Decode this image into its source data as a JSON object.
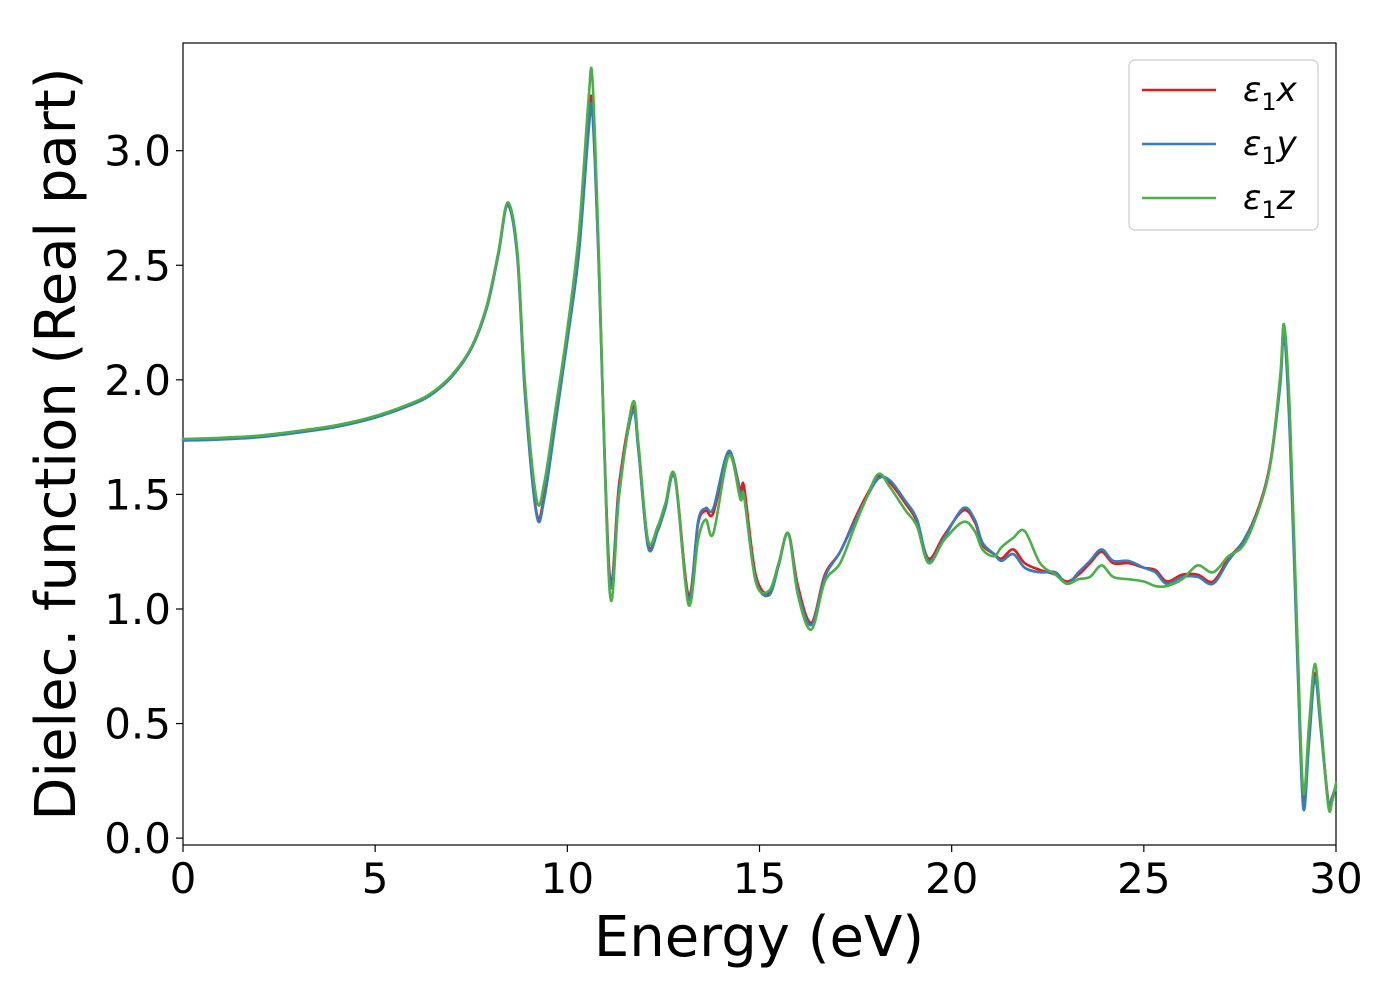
{
  "chart_data": {
    "type": "line",
    "xlabel": "Energy (eV)",
    "ylabel": "Dielec. function (Real part)",
    "xlim": [
      0,
      30
    ],
    "ylim": [
      -0.03,
      3.47
    ],
    "xticks": [
      0,
      5,
      10,
      15,
      20,
      25,
      30
    ],
    "xtick_labels": [
      "0",
      "5",
      "10",
      "15",
      "20",
      "25",
      "30"
    ],
    "yticks": [
      0.0,
      0.5,
      1.0,
      1.5,
      2.0,
      2.5,
      3.0
    ],
    "ytick_labels": [
      "0.0",
      "0.5",
      "1.0",
      "1.5",
      "2.0",
      "2.5",
      "3.0"
    ],
    "grid": false,
    "legend_position": "top-right",
    "series": [
      {
        "name": "ε₁x",
        "legend_main": "ε",
        "legend_sub": "1",
        "legend_axis": "x",
        "color": "#e41a1c",
        "x": [
          0,
          1,
          2,
          3,
          4,
          5,
          6,
          6.5,
          7,
          7.5,
          7.9,
          8.2,
          8.45,
          8.7,
          8.9,
          9.2,
          9.4,
          9.7,
          10.0,
          10.3,
          10.55,
          10.65,
          10.8,
          11.1,
          11.35,
          11.7,
          11.85,
          12.1,
          12.35,
          12.55,
          12.8,
          13.15,
          13.4,
          13.6,
          13.8,
          14.2,
          14.5,
          14.6,
          14.9,
          15.25,
          15.5,
          15.75,
          16.0,
          16.35,
          16.7,
          17.1,
          17.5,
          17.8,
          18.1,
          18.4,
          18.8,
          19.1,
          19.4,
          19.8,
          20.3,
          20.6,
          20.8,
          21.1,
          21.3,
          21.6,
          21.9,
          22.3,
          22.7,
          23.0,
          23.3,
          23.6,
          23.9,
          24.2,
          24.6,
          25.0,
          25.3,
          25.6,
          26.0,
          26.4,
          26.8,
          27.2,
          27.6,
          28.0,
          28.3,
          28.55,
          28.65,
          28.8,
          29.0,
          29.15,
          29.3,
          29.45,
          29.6,
          29.8,
          29.9,
          30.0
        ],
        "y": [
          1.74,
          1.745,
          1.755,
          1.775,
          1.8,
          1.84,
          1.9,
          1.945,
          2.02,
          2.14,
          2.32,
          2.55,
          2.77,
          2.55,
          1.95,
          1.42,
          1.5,
          1.85,
          2.2,
          2.6,
          3.12,
          3.2,
          2.6,
          1.15,
          1.55,
          1.88,
          1.7,
          1.28,
          1.35,
          1.45,
          1.58,
          1.06,
          1.37,
          1.43,
          1.42,
          1.68,
          1.52,
          1.53,
          1.15,
          1.07,
          1.2,
          1.33,
          1.1,
          0.94,
          1.15,
          1.25,
          1.4,
          1.5,
          1.58,
          1.55,
          1.46,
          1.38,
          1.22,
          1.32,
          1.43,
          1.38,
          1.28,
          1.24,
          1.22,
          1.26,
          1.2,
          1.17,
          1.15,
          1.12,
          1.15,
          1.2,
          1.25,
          1.2,
          1.2,
          1.18,
          1.17,
          1.12,
          1.15,
          1.15,
          1.12,
          1.22,
          1.3,
          1.45,
          1.65,
          2.0,
          2.22,
          1.8,
          0.8,
          0.15,
          0.45,
          0.72,
          0.5,
          0.16,
          0.18,
          0.23
        ]
      },
      {
        "name": "ε₁y",
        "legend_main": "ε",
        "legend_sub": "1",
        "legend_axis": "y",
        "color": "#377eb8",
        "x": [
          0,
          1,
          2,
          3,
          4,
          5,
          6,
          6.5,
          7,
          7.5,
          7.9,
          8.2,
          8.45,
          8.7,
          8.9,
          9.2,
          9.4,
          9.7,
          10.0,
          10.3,
          10.55,
          10.65,
          10.8,
          11.1,
          11.35,
          11.7,
          11.85,
          12.1,
          12.35,
          12.55,
          12.8,
          13.15,
          13.4,
          13.6,
          13.8,
          14.2,
          14.5,
          14.6,
          14.9,
          15.25,
          15.5,
          15.75,
          16.0,
          16.35,
          16.7,
          17.1,
          17.5,
          17.8,
          18.1,
          18.4,
          18.8,
          19.1,
          19.4,
          19.8,
          20.3,
          20.6,
          20.8,
          21.1,
          21.3,
          21.6,
          21.9,
          22.3,
          22.7,
          23.0,
          23.3,
          23.6,
          23.9,
          24.2,
          24.6,
          25.0,
          25.3,
          25.6,
          26.0,
          26.4,
          26.8,
          27.2,
          27.6,
          28.0,
          28.3,
          28.55,
          28.65,
          28.8,
          29.0,
          29.15,
          29.3,
          29.45,
          29.6,
          29.8,
          29.9,
          30.0
        ],
        "y": [
          1.735,
          1.74,
          1.75,
          1.77,
          1.795,
          1.835,
          1.895,
          1.94,
          2.015,
          2.135,
          2.31,
          2.54,
          2.76,
          2.53,
          1.93,
          1.41,
          1.48,
          1.82,
          2.17,
          2.55,
          3.08,
          3.17,
          2.58,
          1.13,
          1.53,
          1.86,
          1.69,
          1.27,
          1.34,
          1.44,
          1.57,
          1.04,
          1.38,
          1.44,
          1.44,
          1.69,
          1.5,
          1.49,
          1.13,
          1.06,
          1.19,
          1.33,
          1.08,
          0.93,
          1.14,
          1.25,
          1.39,
          1.49,
          1.57,
          1.56,
          1.47,
          1.39,
          1.21,
          1.31,
          1.44,
          1.39,
          1.29,
          1.24,
          1.21,
          1.24,
          1.18,
          1.16,
          1.16,
          1.11,
          1.16,
          1.21,
          1.26,
          1.21,
          1.21,
          1.18,
          1.16,
          1.11,
          1.14,
          1.14,
          1.11,
          1.21,
          1.3,
          1.44,
          1.64,
          1.98,
          2.2,
          1.75,
          0.75,
          0.13,
          0.42,
          0.7,
          0.48,
          0.15,
          0.18,
          0.22
        ]
      },
      {
        "name": "ε₁z",
        "legend_main": "ε",
        "legend_sub": "1",
        "legend_axis": "z",
        "color": "#4daf4a",
        "x": [
          0,
          1,
          2,
          3,
          4,
          5,
          6,
          6.5,
          7,
          7.5,
          7.9,
          8.2,
          8.45,
          8.7,
          8.9,
          9.2,
          9.4,
          9.7,
          10.0,
          10.3,
          10.55,
          10.65,
          10.8,
          11.1,
          11.35,
          11.7,
          11.85,
          12.1,
          12.35,
          12.55,
          12.8,
          13.15,
          13.4,
          13.6,
          13.8,
          14.2,
          14.5,
          14.6,
          14.9,
          15.25,
          15.5,
          15.75,
          16.0,
          16.35,
          16.7,
          17.1,
          17.5,
          17.8,
          18.1,
          18.4,
          18.8,
          19.1,
          19.4,
          19.8,
          20.3,
          20.6,
          20.8,
          21.1,
          21.3,
          21.6,
          21.9,
          22.3,
          22.7,
          23.0,
          23.3,
          23.6,
          23.9,
          24.2,
          24.6,
          25.0,
          25.3,
          25.6,
          26.0,
          26.4,
          26.8,
          27.2,
          27.6,
          28.0,
          28.3,
          28.55,
          28.65,
          28.8,
          29.0,
          29.15,
          29.3,
          29.45,
          29.6,
          29.8,
          29.9,
          30.0
        ],
        "y": [
          1.742,
          1.747,
          1.757,
          1.777,
          1.802,
          1.842,
          1.902,
          1.947,
          2.022,
          2.142,
          2.322,
          2.552,
          2.775,
          2.56,
          1.98,
          1.48,
          1.55,
          1.88,
          2.22,
          2.64,
          3.22,
          3.32,
          2.65,
          1.08,
          1.5,
          1.9,
          1.72,
          1.3,
          1.36,
          1.46,
          1.58,
          1.02,
          1.3,
          1.39,
          1.33,
          1.67,
          1.48,
          1.49,
          1.12,
          1.08,
          1.2,
          1.33,
          1.06,
          0.91,
          1.12,
          1.2,
          1.37,
          1.49,
          1.59,
          1.53,
          1.43,
          1.36,
          1.2,
          1.3,
          1.38,
          1.34,
          1.26,
          1.23,
          1.27,
          1.31,
          1.34,
          1.2,
          1.15,
          1.11,
          1.13,
          1.14,
          1.19,
          1.14,
          1.13,
          1.12,
          1.1,
          1.1,
          1.13,
          1.19,
          1.16,
          1.23,
          1.28,
          1.44,
          1.64,
          2.02,
          2.24,
          1.85,
          0.85,
          0.2,
          0.5,
          0.76,
          0.52,
          0.14,
          0.16,
          0.24
        ]
      }
    ]
  }
}
